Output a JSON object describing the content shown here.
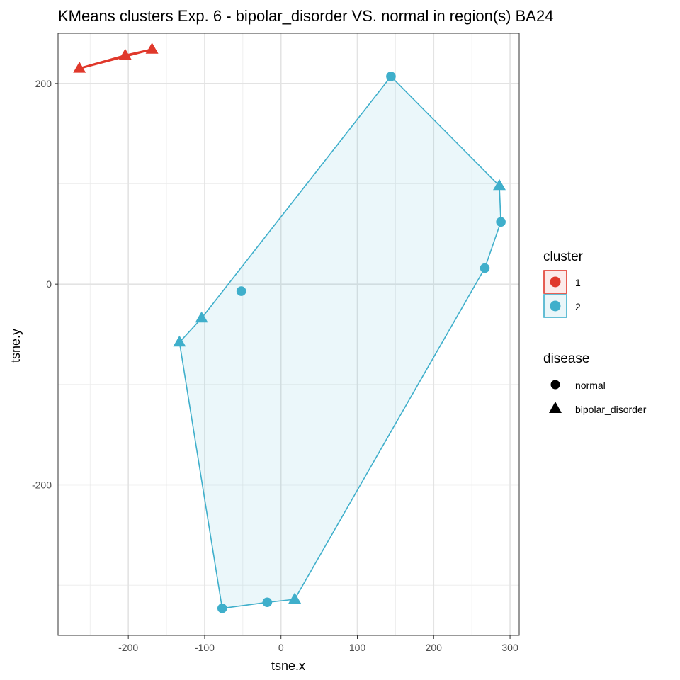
{
  "chart_data": {
    "type": "scatter",
    "title": "KMeans clusters Exp. 6 - bipolar_disorder VS. normal in region(s) BA24",
    "xlabel": "tsne.x",
    "ylabel": "tsne.y",
    "xlim": [
      -292,
      312
    ],
    "ylim": [
      -350,
      250
    ],
    "x_major_ticks": [
      -200,
      -100,
      0,
      100,
      200,
      300
    ],
    "x_tick_labels": [
      "-200",
      "-100",
      "0",
      "100",
      "200",
      "300"
    ],
    "x_minor_ticks": [
      -250,
      -150,
      -50,
      50,
      150,
      250
    ],
    "y_major_ticks": [
      -200,
      0,
      200
    ],
    "y_tick_labels": [
      "-200",
      "0",
      "200"
    ],
    "y_minor_ticks": [
      -300,
      -100,
      100
    ],
    "grid": true,
    "legend_position": "right",
    "legends": {
      "cluster": {
        "title": "cluster",
        "items": [
          {
            "label": "1",
            "color": "#E0382B",
            "fill": "#FCEBEA"
          },
          {
            "label": "2",
            "color": "#3FAFCB",
            "fill": "#EAF6F9"
          }
        ]
      },
      "disease": {
        "title": "disease",
        "items": [
          {
            "label": "normal",
            "shape": "circle"
          },
          {
            "label": "bipolar_disorder",
            "shape": "triangle"
          }
        ]
      }
    },
    "points": [
      {
        "x": -264,
        "y": 215,
        "cluster": "1",
        "disease": "bipolar_disorder"
      },
      {
        "x": -204,
        "y": 228,
        "cluster": "1",
        "disease": "bipolar_disorder"
      },
      {
        "x": -169,
        "y": 234,
        "cluster": "1",
        "disease": "bipolar_disorder"
      },
      {
        "x": 144,
        "y": 207,
        "cluster": "2",
        "disease": "normal"
      },
      {
        "x": 286,
        "y": 98,
        "cluster": "2",
        "disease": "bipolar_disorder"
      },
      {
        "x": 288,
        "y": 62,
        "cluster": "2",
        "disease": "normal"
      },
      {
        "x": 267,
        "y": 16,
        "cluster": "2",
        "disease": "normal"
      },
      {
        "x": -52,
        "y": -7,
        "cluster": "2",
        "disease": "normal"
      },
      {
        "x": -104,
        "y": -34,
        "cluster": "2",
        "disease": "bipolar_disorder"
      },
      {
        "x": -133,
        "y": -58,
        "cluster": "2",
        "disease": "bipolar_disorder"
      },
      {
        "x": 18,
        "y": -314,
        "cluster": "2",
        "disease": "bipolar_disorder"
      },
      {
        "x": -18,
        "y": -317,
        "cluster": "2",
        "disease": "normal"
      },
      {
        "x": -77,
        "y": -323,
        "cluster": "2",
        "disease": "normal"
      }
    ],
    "hulls": [
      {
        "cluster": "1",
        "points": [
          [
            -264,
            215
          ],
          [
            -204,
            228
          ],
          [
            -169,
            234
          ]
        ]
      },
      {
        "cluster": "2",
        "points": [
          [
            144,
            207
          ],
          [
            286,
            98
          ],
          [
            288,
            62
          ],
          [
            267,
            16
          ],
          [
            18,
            -314
          ],
          [
            -18,
            -317
          ],
          [
            -77,
            -323
          ],
          [
            -133,
            -58
          ],
          [
            -104,
            -34
          ]
        ]
      }
    ]
  }
}
